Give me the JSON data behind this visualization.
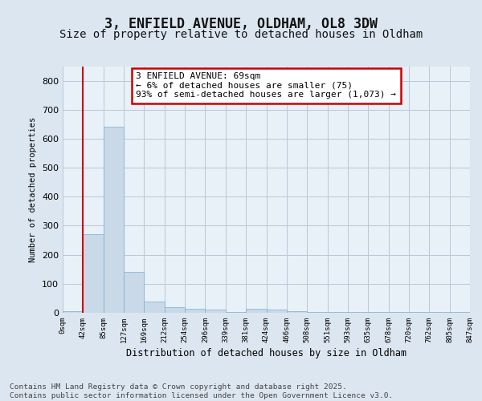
{
  "title1": "3, ENFIELD AVENUE, OLDHAM, OL8 3DW",
  "title2": "Size of property relative to detached houses in Oldham",
  "xlabel": "Distribution of detached houses by size in Oldham",
  "ylabel": "Number of detached properties",
  "bar_values": [
    5,
    270,
    640,
    140,
    40,
    20,
    15,
    10,
    2,
    15,
    10,
    5,
    2,
    2,
    2,
    2,
    2,
    2,
    2,
    2
  ],
  "bin_labels": [
    "0sqm",
    "42sqm",
    "85sqm",
    "127sqm",
    "169sqm",
    "212sqm",
    "254sqm",
    "296sqm",
    "339sqm",
    "381sqm",
    "424sqm",
    "466sqm",
    "508sqm",
    "551sqm",
    "593sqm",
    "635sqm",
    "678sqm",
    "720sqm",
    "762sqm",
    "805sqm",
    "847sqm"
  ],
  "bar_color": "#c9d9e8",
  "bar_edge_color": "#7aaed0",
  "vline_x": 1,
  "vline_color": "#cc0000",
  "annotation_text": "3 ENFIELD AVENUE: 69sqm\n← 6% of detached houses are smaller (75)\n93% of semi-detached houses are larger (1,073) →",
  "annotation_box_color": "#ffffff",
  "annotation_box_edge": "#cc0000",
  "ylim_max": 850,
  "yticks": [
    0,
    100,
    200,
    300,
    400,
    500,
    600,
    700,
    800
  ],
  "grid_color": "#b8c8d8",
  "background_color": "#dce6f0",
  "plot_bg_color": "#e8f0f8",
  "footer_text": "Contains HM Land Registry data © Crown copyright and database right 2025.\nContains public sector information licensed under the Open Government Licence v3.0."
}
